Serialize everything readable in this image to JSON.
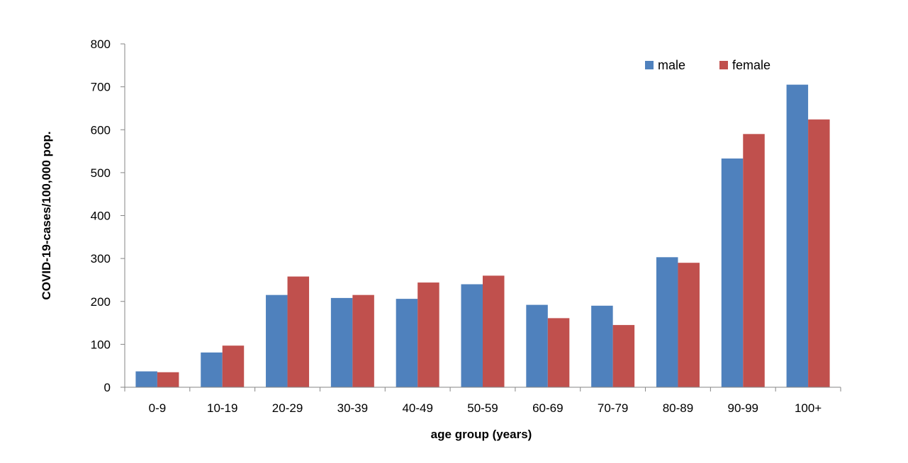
{
  "chart_data": {
    "type": "bar",
    "title": "",
    "xlabel": "age group (years)",
    "ylabel": "COVID-19-cases/100,000 pop.",
    "ylim": [
      0,
      800
    ],
    "yticks": [
      0,
      100,
      200,
      300,
      400,
      500,
      600,
      700,
      800
    ],
    "categories": [
      "0-9",
      "10-19",
      "20-29",
      "30-39",
      "40-49",
      "50-59",
      "60-69",
      "70-79",
      "80-89",
      "90-99",
      "100+"
    ],
    "series": [
      {
        "name": "male",
        "color": "#4F81BD",
        "values": [
          37,
          81,
          215,
          208,
          206,
          240,
          192,
          190,
          303,
          533,
          705
        ]
      },
      {
        "name": "female",
        "color": "#C0504D",
        "values": [
          35,
          97,
          258,
          215,
          244,
          260,
          161,
          145,
          290,
          590,
          624
        ]
      }
    ],
    "grid": false,
    "legend_position": "top-right"
  }
}
